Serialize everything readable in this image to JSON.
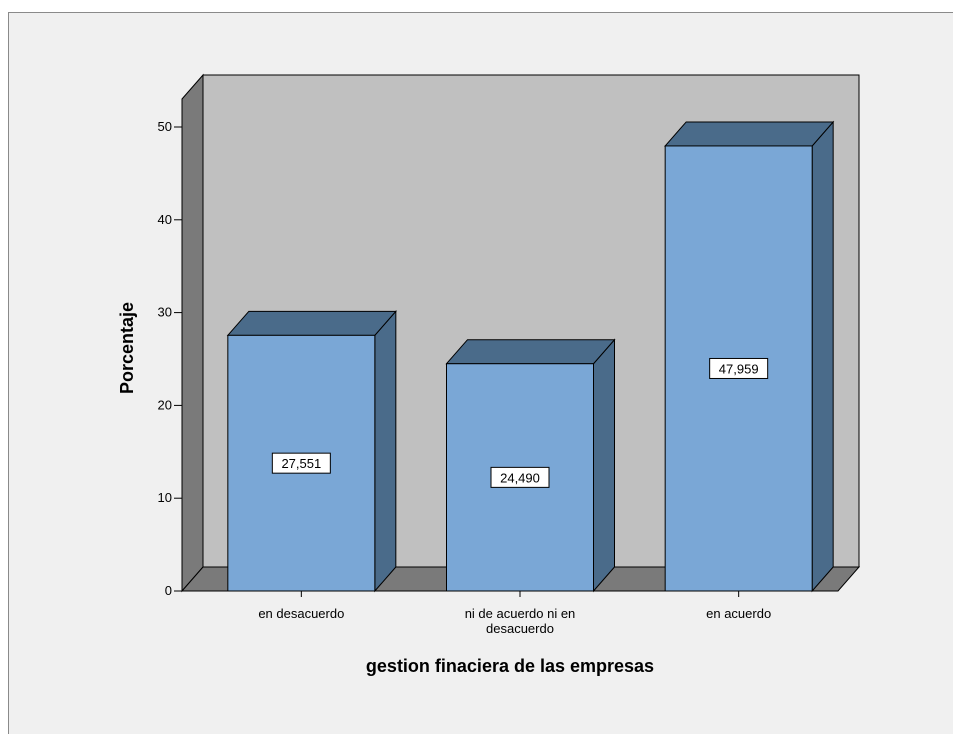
{
  "chart_data": {
    "type": "bar",
    "categories": [
      [
        "en desacuerdo"
      ],
      [
        "ni de acuerdo ni en",
        "desacuerdo"
      ],
      [
        "en acuerdo"
      ]
    ],
    "values": [
      27.551,
      24.49,
      47.959
    ],
    "data_labels": [
      "27,551",
      "24,490",
      "47,959"
    ],
    "title": "",
    "xlabel": "gestion finaciera de las empresas",
    "ylabel": "Porcentaje",
    "ylim": [
      0,
      50
    ],
    "yticks": [
      0,
      10,
      20,
      30,
      40,
      50
    ],
    "grid": false,
    "style": "3d",
    "colors": {
      "bar_front": "#7aa7d6",
      "bar_side": "#4a6b8a",
      "bar_top": "#4a6b8a",
      "back_wall": "#c0c0c0",
      "left_wall": "#7a7a7a",
      "floor": "#7a7a7a",
      "background": "#f0f0f0"
    }
  }
}
